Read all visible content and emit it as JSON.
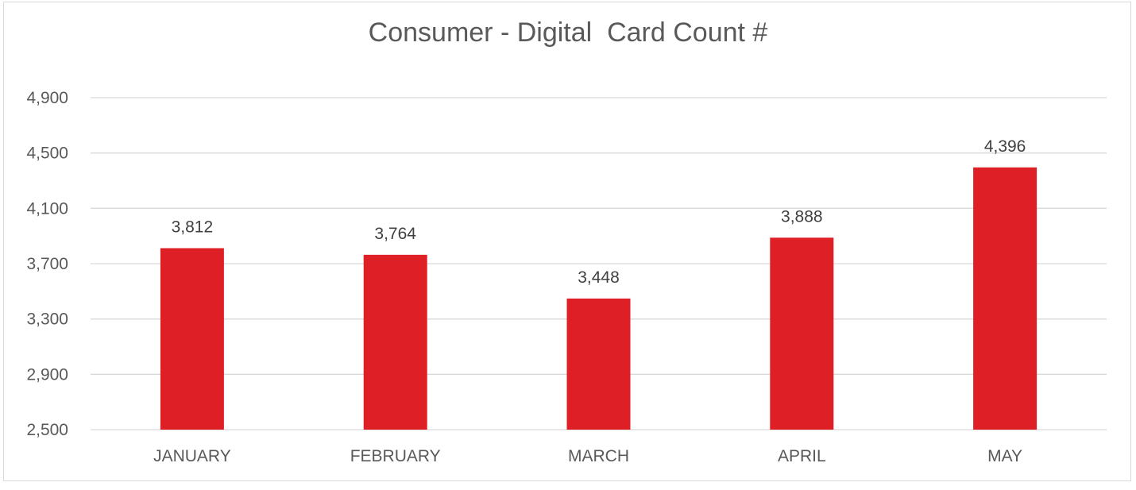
{
  "chart_data": {
    "type": "bar",
    "title": "Consumer - Digital  Card Count #",
    "categories": [
      "JANUARY",
      "FEBRUARY",
      "MARCH",
      "APRIL",
      "MAY"
    ],
    "values": [
      3812,
      3764,
      3448,
      3888,
      4396
    ],
    "data_labels": [
      "3,812",
      "3,764",
      "3,448",
      "3,888",
      "4,396"
    ],
    "ylim": [
      2500,
      4900
    ],
    "y_ticks": [
      2500,
      2900,
      3300,
      3700,
      4100,
      4500,
      4900
    ],
    "y_tick_labels": [
      "2,500",
      "2,900",
      "3,300",
      "3,700",
      "4,100",
      "4,500",
      "4,900"
    ],
    "grid": true,
    "legend": "none",
    "bar_color": "#df1f26"
  }
}
